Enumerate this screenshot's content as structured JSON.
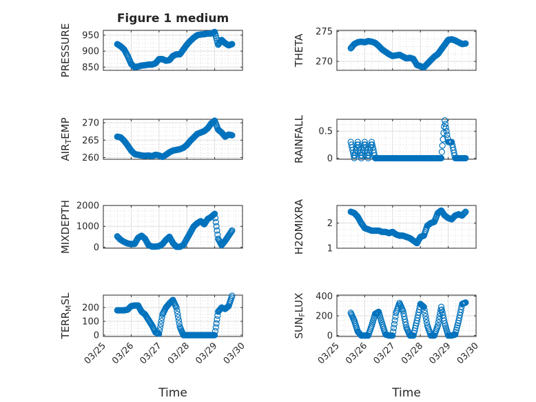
{
  "figure": {
    "title": "Figure 1 medium",
    "marker_color": "#0072bd",
    "axes_color": "#262626",
    "grid_color": "#cfcfcf"
  },
  "chart_data": [
    {
      "id": "pressure",
      "type": "scatter",
      "title": "Figure 1 medium",
      "ylabel": "PRESSURE",
      "xlabel": "",
      "xlim": [
        "03/25",
        "03/30"
      ],
      "xticks": [],
      "ylim": [
        840,
        965
      ],
      "yticks": [
        "850",
        "900",
        "950"
      ],
      "grid": true,
      "x": [
        "03/25 12:00",
        "03/25 15:00",
        "03/25 18:00",
        "03/25 21:00",
        "03/26 00:00",
        "03/26 03:00",
        "03/26 06:00",
        "03/26 09:00",
        "03/26 12:00",
        "03/26 15:00",
        "03/26 18:00",
        "03/26 21:00",
        "03/27 00:00",
        "03/27 03:00",
        "03/27 06:00",
        "03/27 09:00",
        "03/27 12:00",
        "03/27 15:00",
        "03/27 18:00",
        "03/27 21:00",
        "03/28 00:00",
        "03/28 03:00",
        "03/28 06:00",
        "03/28 09:00",
        "03/28 12:00",
        "03/28 15:00",
        "03/28 18:00",
        "03/28 21:00",
        "03/29 00:00",
        "03/29 03:00",
        "03/29 06:00",
        "03/29 09:00",
        "03/29 12:00",
        "03/29 15:00"
      ],
      "y": [
        922,
        915,
        905,
        885,
        860,
        850,
        852,
        855,
        856,
        858,
        858,
        862,
        875,
        875,
        870,
        872,
        885,
        890,
        890,
        905,
        920,
        932,
        942,
        950,
        952,
        953,
        955,
        955,
        960,
        920,
        935,
        925,
        918,
        922
      ]
    },
    {
      "id": "theta",
      "type": "scatter",
      "title": "",
      "ylabel": "THETA",
      "xlabel": "",
      "xlim": [
        "03/25",
        "03/30"
      ],
      "xticks": [],
      "ylim": [
        268.5,
        275.2
      ],
      "yticks": [
        "270",
        "275"
      ],
      "grid": true,
      "x": [
        "03/25 12:00",
        "03/25 15:00",
        "03/25 18:00",
        "03/25 21:00",
        "03/26 00:00",
        "03/26 03:00",
        "03/26 06:00",
        "03/26 09:00",
        "03/26 12:00",
        "03/26 15:00",
        "03/26 18:00",
        "03/26 21:00",
        "03/27 00:00",
        "03/27 03:00",
        "03/27 06:00",
        "03/27 09:00",
        "03/27 12:00",
        "03/27 15:00",
        "03/27 18:00",
        "03/27 21:00",
        "03/28 00:00",
        "03/28 03:00",
        "03/28 06:00",
        "03/28 09:00",
        "03/28 12:00",
        "03/28 15:00",
        "03/28 18:00",
        "03/28 21:00",
        "03/29 00:00",
        "03/29 03:00",
        "03/29 06:00",
        "03/29 09:00",
        "03/29 12:00",
        "03/29 15:00"
      ],
      "y": [
        272.2,
        272.9,
        273.2,
        273.3,
        273.2,
        273.4,
        273.3,
        273.1,
        272.6,
        272.0,
        271.6,
        271.2,
        270.9,
        271.0,
        271.1,
        270.8,
        270.5,
        270.6,
        270.4,
        269.4,
        269.2,
        269.0,
        269.6,
        270.2,
        270.8,
        271.2,
        272.0,
        272.8,
        273.6,
        273.7,
        273.5,
        273.2,
        272.9,
        273.0
      ]
    },
    {
      "id": "air_temp",
      "type": "scatter",
      "title": "",
      "ylabel": "AIR_TEMP",
      "ylabel_main": "AIR",
      "ylabel_sub": "T",
      "ylabel_rest": "EMP",
      "xlabel": "",
      "xlim": [
        "03/25",
        "03/30"
      ],
      "xticks": [],
      "ylim": [
        259.5,
        271
      ],
      "yticks": [
        "260",
        "265",
        "270"
      ],
      "grid": true,
      "x": [
        "03/25 12:00",
        "03/25 15:00",
        "03/25 18:00",
        "03/25 21:00",
        "03/26 00:00",
        "03/26 03:00",
        "03/26 06:00",
        "03/26 09:00",
        "03/26 12:00",
        "03/26 15:00",
        "03/26 18:00",
        "03/26 21:00",
        "03/27 00:00",
        "03/27 03:00",
        "03/27 06:00",
        "03/27 09:00",
        "03/27 12:00",
        "03/27 15:00",
        "03/27 18:00",
        "03/27 21:00",
        "03/28 00:00",
        "03/28 03:00",
        "03/28 06:00",
        "03/28 09:00",
        "03/28 12:00",
        "03/28 15:00",
        "03/28 18:00",
        "03/28 21:00",
        "03/29 00:00",
        "03/29 03:00",
        "03/29 06:00",
        "03/29 09:00",
        "03/29 12:00",
        "03/29 15:00"
      ],
      "y": [
        266.0,
        265.8,
        264.8,
        263.5,
        262.0,
        261.0,
        260.8,
        260.6,
        260.5,
        260.6,
        260.4,
        260.8,
        260.6,
        260.2,
        260.8,
        261.5,
        262.0,
        262.2,
        262.4,
        262.8,
        263.6,
        264.8,
        265.8,
        266.8,
        267.2,
        267.6,
        268.4,
        269.8,
        270.6,
        268.0,
        267.2,
        266.0,
        266.6,
        266.4
      ]
    },
    {
      "id": "rainfall",
      "type": "scatter",
      "title": "",
      "ylabel": "RAINFALL",
      "xlabel": "",
      "xlim": [
        "03/25",
        "03/30"
      ],
      "xticks": [],
      "ylim": [
        -0.02,
        0.72
      ],
      "yticks": [
        "0",
        "0.5"
      ],
      "grid": true,
      "x": [
        "03/25 12:00",
        "03/25 15:00",
        "03/25 18:00",
        "03/25 21:00",
        "03/26 00:00",
        "03/26 03:00",
        "03/26 06:00",
        "03/26 09:00",
        "03/26 12:00",
        "03/26 15:00",
        "03/26 18:00",
        "03/26 21:00",
        "03/27 00:00",
        "03/27 03:00",
        "03/27 06:00",
        "03/27 09:00",
        "03/27 12:00",
        "03/27 15:00",
        "03/27 18:00",
        "03/27 21:00",
        "03/28 00:00",
        "03/28 03:00",
        "03/28 06:00",
        "03/28 09:00",
        "03/28 12:00",
        "03/28 15:00",
        "03/28 18:00",
        "03/28 21:00",
        "03/29 00:00",
        "03/29 03:00",
        "03/29 06:00",
        "03/29 09:00",
        "03/29 12:00",
        "03/29 15:00"
      ],
      "y": [
        0.3,
        0,
        0.3,
        0,
        0.3,
        0,
        0.3,
        0,
        0,
        0,
        0,
        0,
        0,
        0,
        0,
        0,
        0,
        0,
        0,
        0,
        0,
        0,
        0,
        0,
        0,
        0,
        0,
        0.7,
        0.3,
        0.3,
        0,
        0,
        0,
        0
      ]
    },
    {
      "id": "mixdepth",
      "type": "scatter",
      "title": "",
      "ylabel": "MIXDEPTH",
      "xlabel": "",
      "xlim": [
        "03/25",
        "03/30"
      ],
      "xticks": [],
      "ylim": [
        -50,
        2000
      ],
      "yticks": [
        "0",
        "1000",
        "2000"
      ],
      "grid": true,
      "x": [
        "03/25 12:00",
        "03/25 15:00",
        "03/25 18:00",
        "03/25 21:00",
        "03/26 00:00",
        "03/26 03:00",
        "03/26 06:00",
        "03/26 09:00",
        "03/26 12:00",
        "03/26 15:00",
        "03/26 18:00",
        "03/26 21:00",
        "03/27 00:00",
        "03/27 03:00",
        "03/27 06:00",
        "03/27 09:00",
        "03/27 12:00",
        "03/27 15:00",
        "03/27 18:00",
        "03/27 21:00",
        "03/28 00:00",
        "03/28 03:00",
        "03/28 06:00",
        "03/28 09:00",
        "03/28 12:00",
        "03/28 15:00",
        "03/28 18:00",
        "03/28 21:00",
        "03/29 00:00",
        "03/29 03:00",
        "03/29 06:00",
        "03/29 09:00",
        "03/29 12:00",
        "03/29 15:00"
      ],
      "y": [
        520,
        350,
        250,
        180,
        150,
        160,
        450,
        550,
        400,
        100,
        30,
        30,
        50,
        150,
        350,
        500,
        200,
        20,
        20,
        100,
        400,
        700,
        1000,
        1150,
        1250,
        1100,
        1350,
        1450,
        1600,
        400,
        100,
        300,
        550,
        800
      ]
    },
    {
      "id": "h2omixra",
      "type": "scatter",
      "title": "",
      "ylabel": "H2OMIXRA",
      "xlabel": "",
      "xlim": [
        "03/25",
        "03/30"
      ],
      "xticks": [],
      "ylim": [
        1,
        2.7
      ],
      "yticks": [
        "1",
        "2"
      ],
      "grid": true,
      "x": [
        "03/25 12:00",
        "03/25 15:00",
        "03/25 18:00",
        "03/25 21:00",
        "03/26 00:00",
        "03/26 03:00",
        "03/26 06:00",
        "03/26 09:00",
        "03/26 12:00",
        "03/26 15:00",
        "03/26 18:00",
        "03/26 21:00",
        "03/27 00:00",
        "03/27 03:00",
        "03/27 06:00",
        "03/27 09:00",
        "03/27 12:00",
        "03/27 15:00",
        "03/27 18:00",
        "03/27 21:00",
        "03/28 00:00",
        "03/28 03:00",
        "03/28 06:00",
        "03/28 09:00",
        "03/28 12:00",
        "03/28 15:00",
        "03/28 18:00",
        "03/28 21:00",
        "03/29 00:00",
        "03/29 03:00",
        "03/29 06:00",
        "03/29 09:00",
        "03/29 12:00",
        "03/29 15:00"
      ],
      "y": [
        2.45,
        2.4,
        2.25,
        2.0,
        1.8,
        1.75,
        1.7,
        1.7,
        1.7,
        1.65,
        1.65,
        1.6,
        1.65,
        1.55,
        1.5,
        1.5,
        1.45,
        1.4,
        1.3,
        1.2,
        1.45,
        1.5,
        1.9,
        2.0,
        2.05,
        2.4,
        2.5,
        2.3,
        2.2,
        2.15,
        2.3,
        2.35,
        2.3,
        2.45
      ]
    },
    {
      "id": "terr_msl",
      "type": "scatter",
      "title": "",
      "ylabel": "TERR_MSL",
      "ylabel_main": "TERR",
      "ylabel_sub": "M",
      "ylabel_rest": "SL",
      "xlabel": "Time",
      "xlim": [
        "03/25",
        "03/30"
      ],
      "xticks": [
        "03/25",
        "03/26",
        "03/27",
        "03/28",
        "03/29",
        "03/30"
      ],
      "ylim": [
        -10,
        290
      ],
      "yticks": [
        "0",
        "100",
        "200"
      ],
      "grid": true,
      "x": [
        "03/25 12:00",
        "03/25 15:00",
        "03/25 18:00",
        "03/25 21:00",
        "03/26 00:00",
        "03/26 03:00",
        "03/26 06:00",
        "03/26 09:00",
        "03/26 12:00",
        "03/26 15:00",
        "03/26 18:00",
        "03/26 21:00",
        "03/27 00:00",
        "03/27 03:00",
        "03/27 06:00",
        "03/27 09:00",
        "03/27 12:00",
        "03/27 15:00",
        "03/27 18:00",
        "03/27 21:00",
        "03/28 00:00",
        "03/28 03:00",
        "03/28 06:00",
        "03/28 09:00",
        "03/28 12:00",
        "03/28 15:00",
        "03/28 18:00",
        "03/28 21:00",
        "03/29 00:00",
        "03/29 03:00",
        "03/29 06:00",
        "03/29 09:00",
        "03/29 12:00",
        "03/29 15:00"
      ],
      "y": [
        180,
        180,
        180,
        185,
        210,
        215,
        215,
        170,
        150,
        110,
        70,
        20,
        10,
        150,
        200,
        230,
        255,
        200,
        60,
        0,
        0,
        0,
        0,
        0,
        0,
        0,
        0,
        0,
        0,
        170,
        200,
        190,
        210,
        285
      ]
    },
    {
      "id": "sun_flux",
      "type": "scatter",
      "title": "",
      "ylabel": "SUN_FLUX",
      "ylabel_main": "SUN",
      "ylabel_sub": "F",
      "ylabel_rest": "LUX",
      "xlabel": "Time",
      "xlim": [
        "03/25",
        "03/30"
      ],
      "xticks": [
        "03/25",
        "03/26",
        "03/27",
        "03/28",
        "03/29",
        "03/30"
      ],
      "ylim": [
        -10,
        410
      ],
      "yticks": [
        "0",
        "200",
        "400"
      ],
      "grid": true,
      "x": [
        "03/25 12:00",
        "03/25 15:00",
        "03/25 18:00",
        "03/25 21:00",
        "03/26 00:00",
        "03/26 03:00",
        "03/26 06:00",
        "03/26 09:00",
        "03/26 12:00",
        "03/26 15:00",
        "03/26 18:00",
        "03/26 21:00",
        "03/27 00:00",
        "03/27 03:00",
        "03/27 06:00",
        "03/27 09:00",
        "03/27 12:00",
        "03/27 15:00",
        "03/27 18:00",
        "03/27 21:00",
        "03/28 00:00",
        "03/28 03:00",
        "03/28 06:00",
        "03/28 09:00",
        "03/28 12:00",
        "03/28 15:00",
        "03/28 18:00",
        "03/28 21:00",
        "03/29 00:00",
        "03/29 03:00",
        "03/29 06:00",
        "03/29 09:00",
        "03/29 12:00",
        "03/29 15:00"
      ],
      "y": [
        230,
        150,
        40,
        0,
        0,
        0,
        100,
        220,
        240,
        120,
        10,
        0,
        0,
        230,
        330,
        250,
        80,
        0,
        0,
        150,
        320,
        290,
        100,
        0,
        0,
        100,
        290,
        120,
        0,
        0,
        10,
        150,
        320,
        335
      ]
    }
  ]
}
